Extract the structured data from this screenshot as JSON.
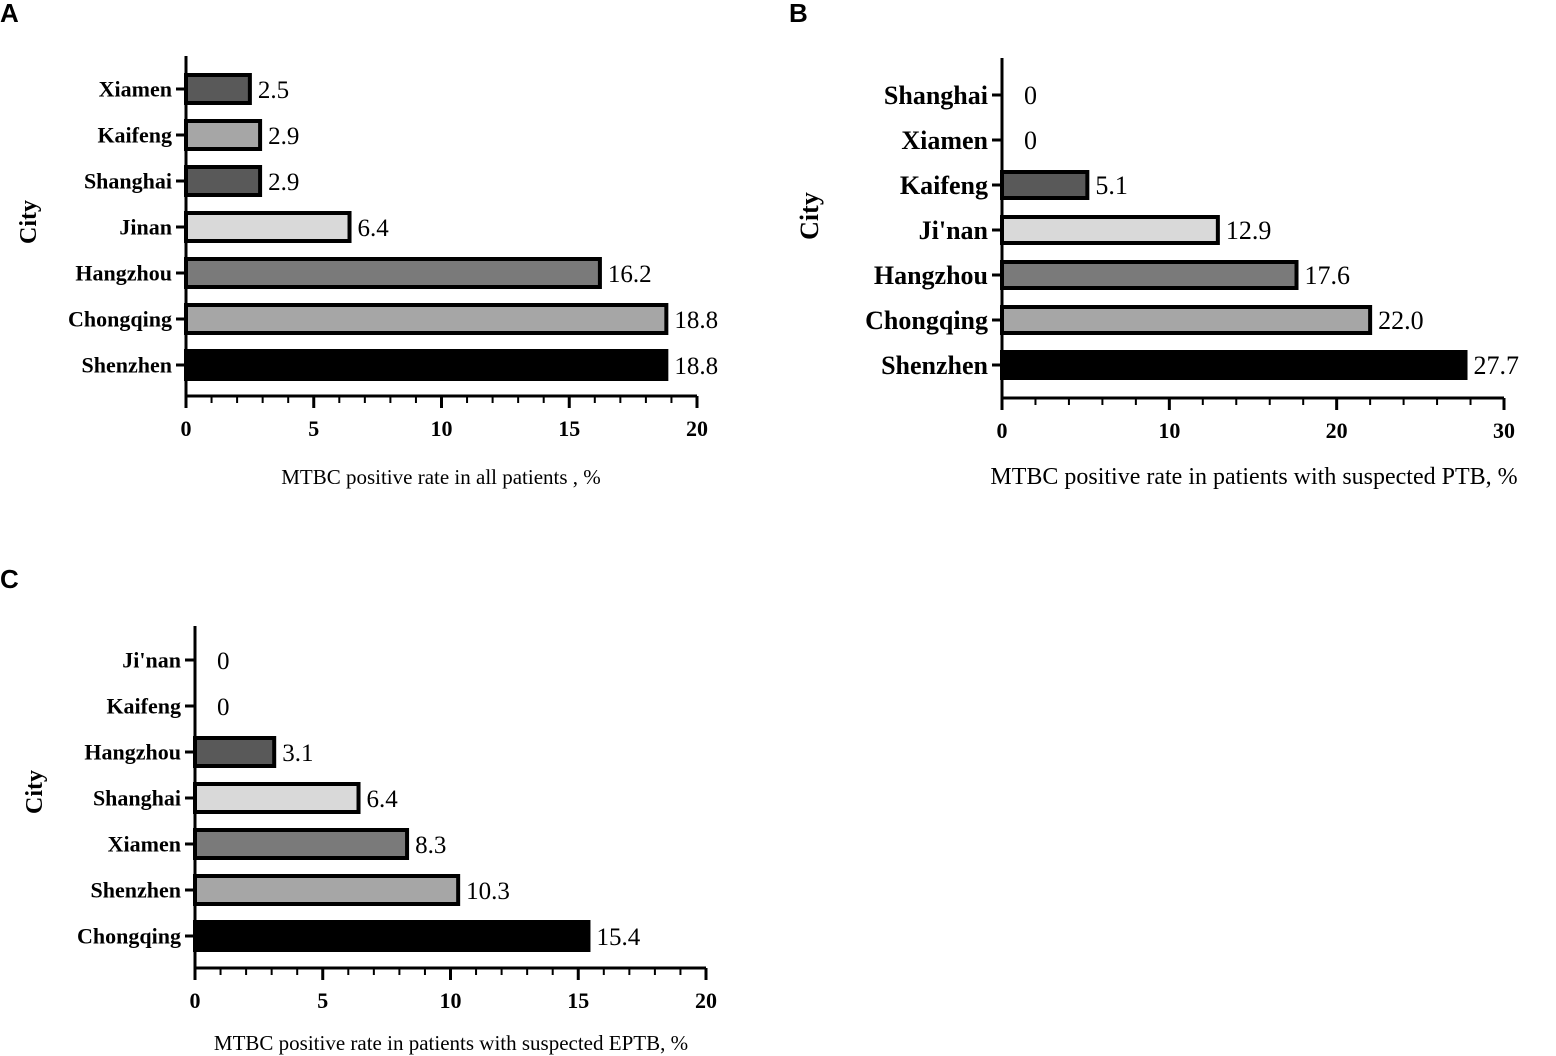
{
  "chart_data": [
    {
      "type": "bar",
      "orientation": "horizontal",
      "panel": "A",
      "ylabel": "City",
      "xlabel": "MTBC positive rate in all patients , %",
      "xlim": [
        0,
        20
      ],
      "xticks": [
        0,
        5,
        10,
        15,
        20
      ],
      "categories": [
        "Xiamen",
        "Kaifeng",
        "Shanghai",
        "Jinan",
        "Hangzhou",
        "Chongqing",
        "Shenzhen"
      ],
      "values": [
        2.5,
        2.9,
        2.9,
        6.4,
        16.2,
        18.8,
        18.8
      ],
      "value_labels": [
        "2.5",
        "2.9",
        "2.9",
        "6.4",
        "16.2",
        "18.8",
        "18.8"
      ],
      "colors": [
        "#595959",
        "#a6a6a6",
        "#595959",
        "#d9d9d9",
        "#7a7a7a",
        "#a6a6a6",
        "#000000"
      ]
    },
    {
      "type": "bar",
      "orientation": "horizontal",
      "panel": "B",
      "ylabel": "City",
      "xlabel": "MTBC positive rate in patients with suspected PTB, %",
      "xlim": [
        0,
        30
      ],
      "xticks": [
        0,
        10,
        20,
        30
      ],
      "categories": [
        "Shanghai",
        "Xiamen",
        "Kaifeng",
        "Ji'nan",
        "Hangzhou",
        "Chongqing",
        "Shenzhen"
      ],
      "values": [
        0,
        0,
        5.1,
        12.9,
        17.6,
        22.0,
        27.7
      ],
      "value_labels": [
        "0",
        "0",
        "5.1",
        "12.9",
        "17.6",
        "22.0",
        "27.7"
      ],
      "colors": [
        "#595959",
        "#a6a6a6",
        "#595959",
        "#d9d9d9",
        "#7a7a7a",
        "#a6a6a6",
        "#000000"
      ]
    },
    {
      "type": "bar",
      "orientation": "horizontal",
      "panel": "C",
      "ylabel": "City",
      "xlabel": "MTBC positive rate in patients with suspected EPTB, %",
      "xlim": [
        0,
        20
      ],
      "xticks": [
        0,
        5,
        10,
        15,
        20
      ],
      "categories": [
        "Ji'nan",
        "Kaifeng",
        "Hangzhou",
        "Shanghai",
        "Xiamen",
        "Shenzhen",
        "Chongqing"
      ],
      "values": [
        0,
        0,
        3.1,
        6.4,
        8.3,
        10.3,
        15.4
      ],
      "value_labels": [
        "0",
        "0",
        "3.1",
        "6.4",
        "8.3",
        "10.3",
        "15.4"
      ],
      "colors": [
        "#595959",
        "#a6a6a6",
        "#595959",
        "#d9d9d9",
        "#7a7a7a",
        "#a6a6a6",
        "#000000"
      ]
    }
  ]
}
